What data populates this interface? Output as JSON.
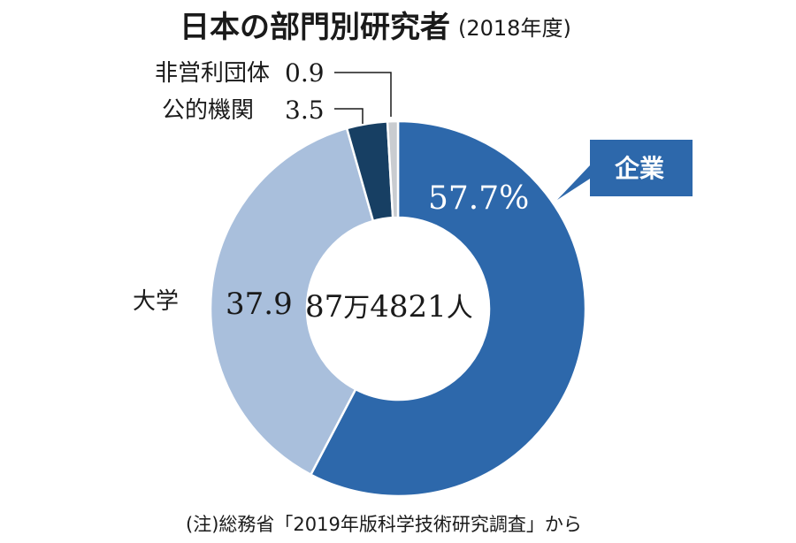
{
  "chart_data": {
    "type": "pie",
    "title": "日本の部門別研究者",
    "subtitle": "(2018年度)",
    "center_label": {
      "number": "87",
      "unit1": "万",
      "number2": "4821",
      "unit2": "人"
    },
    "slices": [
      {
        "name": "企業",
        "value": 57.7,
        "value_label": "57.7%",
        "color": "#2d68ab"
      },
      {
        "name": "大学",
        "value": 37.9,
        "value_label": "37.9",
        "color": "#a9bfdc"
      },
      {
        "name": "公的機関",
        "value": 3.5,
        "value_label": "3.5",
        "color": "#173f63"
      },
      {
        "name": "非営利団体",
        "value": 0.9,
        "value_label": "0.9",
        "color": "#c9ccd0"
      }
    ],
    "note": "(注)総務省「2019年版科学技術研究調査」から"
  }
}
